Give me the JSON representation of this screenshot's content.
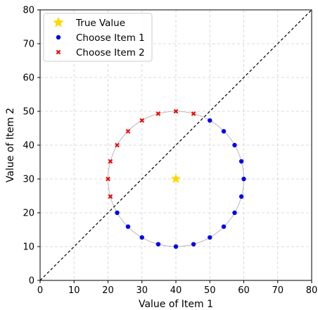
{
  "chart_data": {
    "type": "scatter",
    "xlabel": "Value of Item 1",
    "ylabel": "Value of Item 2",
    "xlim": [
      0,
      80
    ],
    "ylim": [
      0,
      80
    ],
    "xticks": [
      0,
      10,
      20,
      30,
      40,
      50,
      60,
      70,
      80
    ],
    "yticks": [
      0,
      10,
      20,
      30,
      40,
      50,
      60,
      70,
      80
    ],
    "grid": true,
    "legend_position": "top-left",
    "diagonal_line": {
      "from": [
        0,
        0
      ],
      "to": [
        80,
        80
      ],
      "style": "dashed",
      "color": "#000000"
    },
    "circle": {
      "center": [
        40,
        30
      ],
      "radius": 20,
      "color": "#bbbbbb"
    },
    "series": [
      {
        "name": "True Value",
        "marker": "star",
        "color": "#ffd700",
        "points": [
          [
            40,
            30
          ]
        ]
      },
      {
        "name": "Choose Item 1",
        "marker": "circle",
        "color": "#0000ee",
        "points": [
          [
            50.0,
            47.3
          ],
          [
            54.1,
            44.1
          ],
          [
            57.3,
            40.0
          ],
          [
            59.3,
            35.2
          ],
          [
            60.0,
            30.0
          ],
          [
            59.3,
            24.8
          ],
          [
            57.3,
            20.0
          ],
          [
            54.1,
            15.9
          ],
          [
            50.0,
            12.7
          ],
          [
            45.2,
            10.7
          ],
          [
            40.0,
            10.0
          ],
          [
            34.8,
            10.7
          ],
          [
            30.0,
            12.7
          ],
          [
            25.9,
            15.9
          ],
          [
            22.7,
            20.0
          ]
        ]
      },
      {
        "name": "Choose Item 2",
        "marker": "x",
        "color": "#ee0000",
        "points": [
          [
            20.7,
            24.8
          ],
          [
            20.0,
            30.0
          ],
          [
            20.7,
            35.2
          ],
          [
            22.7,
            40.0
          ],
          [
            25.9,
            44.1
          ],
          [
            30.0,
            47.3
          ],
          [
            34.8,
            49.3
          ],
          [
            40.0,
            50.0
          ],
          [
            45.2,
            49.3
          ]
        ]
      }
    ]
  }
}
